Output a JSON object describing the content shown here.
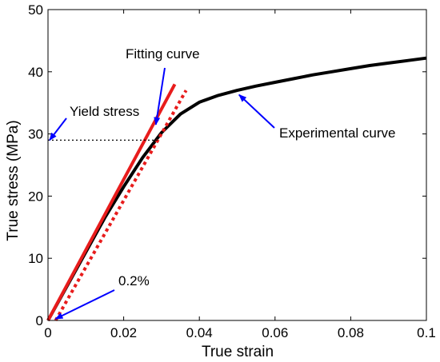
{
  "chart_data": {
    "type": "line",
    "xlabel": "True strain",
    "ylabel": "True stress (MPa)",
    "xlim": [
      0,
      0.1
    ],
    "ylim": [
      0,
      50
    ],
    "xticks": [
      0,
      0.02,
      0.04,
      0.06,
      0.08,
      0.1
    ],
    "xtick_labels": [
      "0",
      "0.02",
      "0.04",
      "0.06",
      "0.08",
      "0.1"
    ],
    "yticks": [
      0,
      10,
      20,
      30,
      40,
      50
    ],
    "ytick_labels": [
      "0",
      "10",
      "20",
      "30",
      "40",
      "50"
    ],
    "grid": false,
    "legend": "none",
    "series": [
      {
        "color": "#000000",
        "style": "solid",
        "x": [
          0,
          0.005,
          0.01,
          0.015,
          0.02,
          0.025,
          0.03,
          0.035,
          0.04,
          0.045,
          0.05,
          0.055,
          0.06,
          0.065,
          0.07,
          0.075,
          0.08,
          0.085,
          0.09,
          0.095,
          0.1
        ],
        "y": [
          0,
          5.5,
          11,
          16.5,
          21.5,
          26.2,
          30.2,
          33.2,
          35.1,
          36.2,
          37.0,
          37.7,
          38.3,
          38.9,
          39.5,
          40.0,
          40.5,
          41.0,
          41.4,
          41.8,
          42.2
        ]
      },
      {
        "color": "#e81c1c",
        "style": "solid",
        "x": [
          0,
          0.0335
        ],
        "y": [
          0,
          38
        ]
      },
      {
        "color": "#e81c1c",
        "style": "dotted",
        "x": [
          0.002,
          0.0365
        ],
        "y": [
          0,
          37
        ]
      },
      {
        "color": "#000000",
        "style": "dotted-thin",
        "x": [
          0,
          0.029
        ],
        "y": [
          29,
          29
        ]
      }
    ],
    "annotations": [
      {
        "text": "Fitting curve",
        "arrow_to": [
          0.0285,
          31.5
        ]
      },
      {
        "text": "Yield stress",
        "arrow_to": [
          0,
          29
        ]
      },
      {
        "text": "Experimental curve",
        "arrow_to": [
          0.0505,
          36.3
        ]
      },
      {
        "text": "0.2%",
        "arrow_to": [
          0.002,
          0
        ]
      }
    ],
    "arrow_color": "#0000ff"
  }
}
